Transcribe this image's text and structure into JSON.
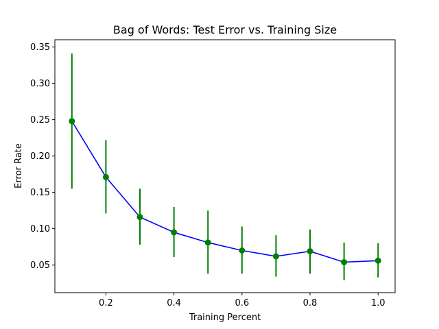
{
  "chart_data": {
    "type": "line",
    "title": "Bag of Words: Test Error vs. Training Size",
    "xlabel": "Training Percent",
    "ylabel": "Error Rate",
    "xlim": [
      0.05,
      1.05
    ],
    "ylim": [
      0.012,
      0.36
    ],
    "xticks": [
      0.2,
      0.4,
      0.6,
      0.8,
      1.0
    ],
    "xtick_labels": [
      "0.2",
      "0.4",
      "0.6",
      "0.8",
      "1.0"
    ],
    "yticks": [
      0.05,
      0.1,
      0.15,
      0.2,
      0.25,
      0.3,
      0.35
    ],
    "ytick_labels": [
      "0.05",
      "0.10",
      "0.15",
      "0.20",
      "0.25",
      "0.30",
      "0.35"
    ],
    "grid": false,
    "series": [
      {
        "x": [
          0.1,
          0.2,
          0.3,
          0.4,
          0.5,
          0.6,
          0.7,
          0.8,
          0.9,
          1.0
        ],
        "y": [
          0.248,
          0.171,
          0.116,
          0.095,
          0.081,
          0.07,
          0.062,
          0.069,
          0.054,
          0.056
        ],
        "error_low": [
          0.155,
          0.121,
          0.078,
          0.061,
          0.038,
          0.038,
          0.034,
          0.038,
          0.029,
          0.033
        ],
        "error_high": [
          0.341,
          0.222,
          0.155,
          0.13,
          0.125,
          0.103,
          0.091,
          0.099,
          0.081,
          0.08
        ],
        "line_color": "#0000ff",
        "marker_color": "#008000",
        "errorbar_color": "#008000"
      }
    ]
  }
}
